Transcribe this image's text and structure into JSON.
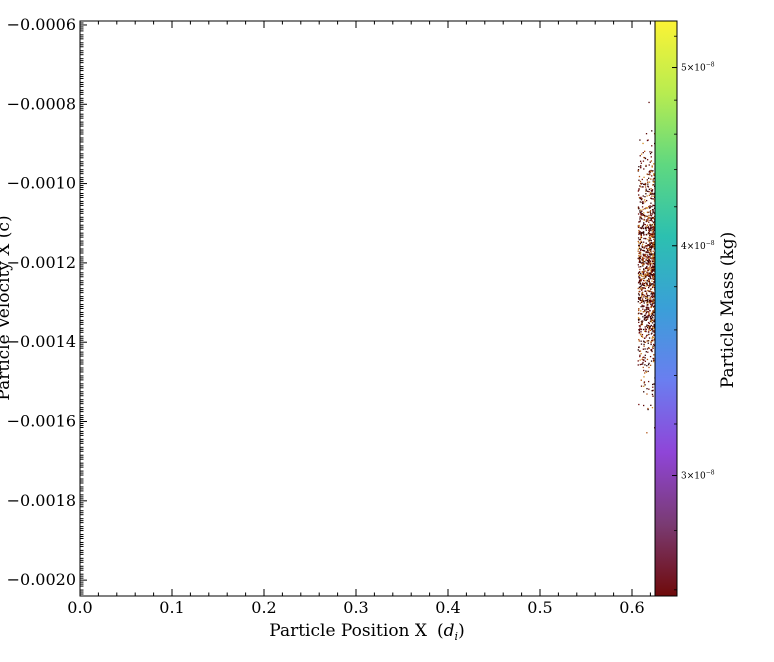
{
  "chart_data": {
    "type": "scatter",
    "xlabel": "Particle Position X",
    "xlabel_unit": "d",
    "xlabel_unit_sub": "i",
    "ylabel": "Particle Velocity X  (c)",
    "xlim": [
      0.0,
      0.625
    ],
    "ylim": [
      -0.00204,
      -0.00059
    ],
    "x_ticks": [
      {
        "value": 0.0,
        "label": "0.0"
      },
      {
        "value": 0.1,
        "label": "0.1"
      },
      {
        "value": 0.2,
        "label": "0.2"
      },
      {
        "value": 0.3,
        "label": "0.3"
      },
      {
        "value": 0.4,
        "label": "0.4"
      },
      {
        "value": 0.5,
        "label": "0.5"
      },
      {
        "value": 0.6,
        "label": "0.6"
      }
    ],
    "y_ticks": [
      {
        "value": -0.0006,
        "label": "−0.0006"
      },
      {
        "value": -0.0008,
        "label": "−0.0008"
      },
      {
        "value": -0.001,
        "label": "−0.0010"
      },
      {
        "value": -0.0012,
        "label": "−0.0012"
      },
      {
        "value": -0.0014,
        "label": "−0.0014"
      },
      {
        "value": -0.0016,
        "label": "−0.0016"
      },
      {
        "value": -0.0018,
        "label": "−0.0018"
      },
      {
        "value": -0.002,
        "label": "−0.0020"
      }
    ],
    "grid": false,
    "particles": {
      "x_range": [
        0.606,
        0.625
      ],
      "y_center": -0.00121,
      "y_spread": 0.00022,
      "y_extent": [
        -0.00181,
        -0.00062
      ],
      "count": 1400,
      "color_label": "Particle Mass",
      "color_unit": "(kg)"
    },
    "colorbar": {
      "label": "Particle Mass  (kg)",
      "scale": "log",
      "range": [
        2.58e-08,
        5.3e-08
      ],
      "colormap": [
        "#6f0a0a",
        "#7a3b73",
        "#8f45d8",
        "#6a7ef0",
        "#3a9fd8",
        "#2cc0b0",
        "#5fd880",
        "#b8ec50",
        "#fbf335"
      ],
      "ticks": [
        {
          "value": 5e-08,
          "base": "5×10",
          "exp": "−8"
        },
        {
          "value": 4e-08,
          "base": "4×10",
          "exp": "−8"
        },
        {
          "value": 3e-08,
          "base": "3×10",
          "exp": "−8"
        }
      ]
    }
  }
}
